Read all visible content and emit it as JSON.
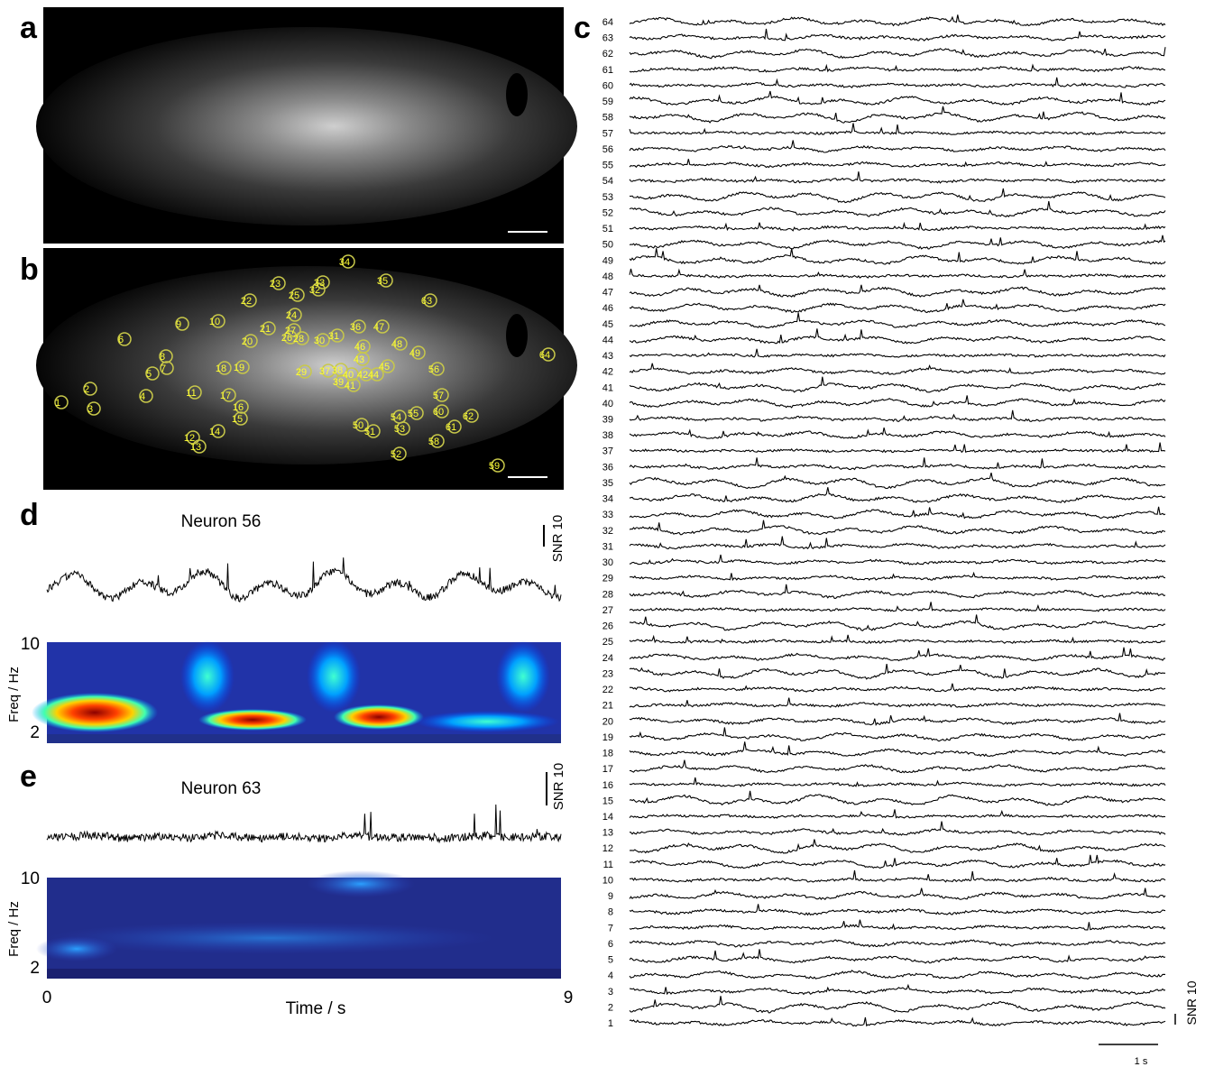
{
  "panels": {
    "a": {
      "letter": "a"
    },
    "b": {
      "letter": "b",
      "roi_labels": [
        1,
        2,
        3,
        4,
        5,
        6,
        7,
        8,
        9,
        10,
        11,
        12,
        13,
        14,
        15,
        16,
        17,
        18,
        19,
        20,
        21,
        22,
        23,
        24,
        25,
        26,
        27,
        28,
        29,
        30,
        31,
        32,
        33,
        34,
        35,
        36,
        37,
        38,
        39,
        40,
        41,
        42,
        43,
        44,
        45,
        46,
        47,
        48,
        49,
        50,
        51,
        52,
        53,
        54,
        55,
        56,
        57,
        58,
        59,
        60,
        61,
        62,
        63,
        64
      ]
    },
    "c": {
      "letter": "c",
      "trace_labels": [
        64,
        63,
        62,
        61,
        60,
        59,
        58,
        57,
        56,
        55,
        54,
        53,
        52,
        51,
        50,
        49,
        48,
        47,
        46,
        45,
        44,
        43,
        42,
        41,
        40,
        39,
        38,
        37,
        36,
        35,
        34,
        33,
        32,
        31,
        30,
        29,
        28,
        27,
        26,
        25,
        24,
        23,
        22,
        21,
        20,
        19,
        18,
        17,
        16,
        15,
        14,
        13,
        12,
        11,
        10,
        9,
        8,
        7,
        6,
        5,
        4,
        3,
        2,
        1
      ],
      "snr_scale": "SNR 10",
      "time_scale": "1 s"
    },
    "d": {
      "letter": "d",
      "title": "Neuron 56",
      "snr_scale": "SNR 10",
      "ylabel": "Freq / Hz",
      "yticks": [
        10,
        2
      ]
    },
    "e": {
      "letter": "e",
      "title": "Neuron 63",
      "snr_scale": "SNR 10",
      "ylabel": "Freq / Hz",
      "yticks": [
        10,
        2
      ],
      "xticks": [
        0,
        9
      ],
      "xlabel": "Time / s"
    }
  }
}
